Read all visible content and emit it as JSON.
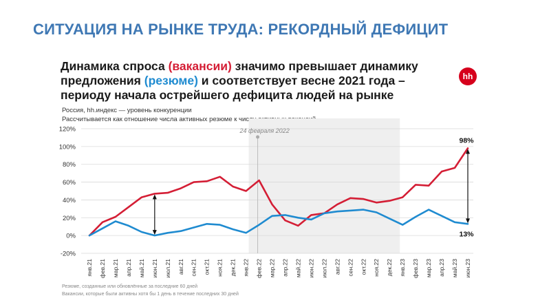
{
  "slide": {
    "title": "СИТУАЦИЯ НА РЫНКЕ ТРУДА: РЕКОРДНЫЙ ДЕФИЦИТ",
    "headline": {
      "p1": "Динамика спроса ",
      "p2": "(вакансии)",
      "p3": " значимо превышает динамику предложения ",
      "p4": "(резюме)",
      "p5": " и соответствует весне 2021 года – периоду начала острейшего дефицита людей на рынке"
    },
    "logo_text": "hh",
    "subtitle1": "Россия, hh.индекс — уровень конкуренции",
    "subtitle2": "Рассчитывается как отношение числа активных резюме к числу активных вакансий",
    "footnote1": "Резюме, созданные или обновлённые за последние 60 дней",
    "footnote2": "Вакансии, которые были активны хотя бы 1 день в течение последних 30 дней"
  },
  "chart_data": {
    "type": "line",
    "categories": [
      "янв.21",
      "фев.21",
      "мар.21",
      "апр.21",
      "май.21",
      "июн.21",
      "июл.21",
      "авг.21",
      "сен.21",
      "окт.21",
      "ноя.21",
      "дек.21",
      "янв.22",
      "фев.22",
      "мар.22",
      "апр.22",
      "май.22",
      "июн.22",
      "июл.22",
      "авг.22",
      "сен.22",
      "окт.22",
      "ноя.22",
      "дек.22",
      "янв.23",
      "фев.23",
      "мар.23",
      "апр.23",
      "май.23",
      "июн.23"
    ],
    "yticks": [
      "120%",
      "100%",
      "80%",
      "60%",
      "40%",
      "20%",
      "0%",
      "-20%"
    ],
    "ylim": [
      -20,
      120
    ],
    "series": [
      {
        "color": "#d41e35",
        "values": [
          0,
          15,
          21,
          32,
          43,
          47,
          48,
          53,
          60,
          61,
          66,
          55,
          50,
          62,
          35,
          17,
          11,
          23,
          25,
          35,
          42,
          41,
          37,
          39,
          43,
          57,
          56,
          72,
          76,
          98
        ]
      },
      {
        "color": "#1f8bd0",
        "values": [
          0,
          8,
          16,
          11,
          4,
          0,
          3,
          5,
          9,
          13,
          12,
          7,
          3,
          12,
          22,
          23,
          20,
          18,
          25,
          27,
          28,
          29,
          26,
          19,
          12,
          21,
          29,
          22,
          15,
          13
        ]
      }
    ],
    "annotation": "24 февраля 2022",
    "end_labels": {
      "red": "98%",
      "blue": "13%"
    },
    "shaded_range": [
      "фев.22",
      "дек.22"
    ],
    "grid": true
  }
}
